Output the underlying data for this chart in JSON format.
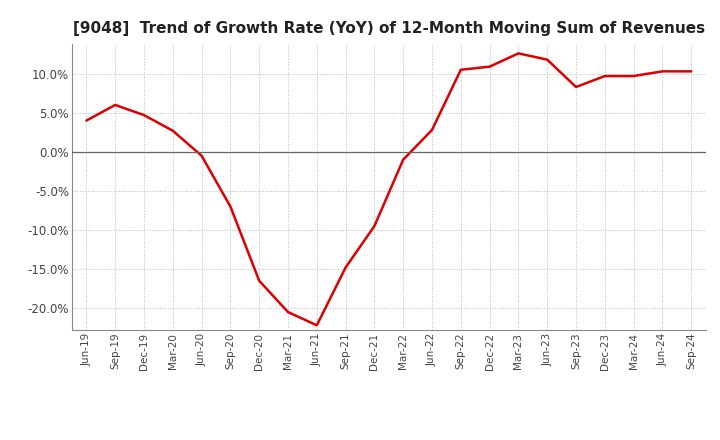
{
  "title": "[9048]  Trend of Growth Rate (YoY) of 12-Month Moving Sum of Revenues",
  "line_color": "#dd0000",
  "line_width": 1.8,
  "background_color": "#ffffff",
  "grid_color": "#aaaaaa",
  "ylim": [
    -0.228,
    0.138
  ],
  "yticks": [
    -0.2,
    -0.15,
    -0.1,
    -0.05,
    0.0,
    0.05,
    0.1
  ],
  "x_labels": [
    "Jun-19",
    "Sep-19",
    "Dec-19",
    "Mar-20",
    "Jun-20",
    "Sep-20",
    "Dec-20",
    "Mar-21",
    "Jun-21",
    "Sep-21",
    "Dec-21",
    "Mar-22",
    "Jun-22",
    "Sep-22",
    "Dec-22",
    "Mar-23",
    "Jun-23",
    "Sep-23",
    "Dec-23",
    "Mar-24",
    "Jun-24",
    "Sep-24"
  ],
  "y_values": [
    0.04,
    0.06,
    0.047,
    0.027,
    -0.005,
    -0.07,
    -0.165,
    -0.205,
    -0.222,
    -0.148,
    -0.095,
    -0.01,
    0.028,
    0.105,
    0.109,
    0.126,
    0.118,
    0.083,
    0.097,
    0.097,
    0.103,
    0.103
  ]
}
